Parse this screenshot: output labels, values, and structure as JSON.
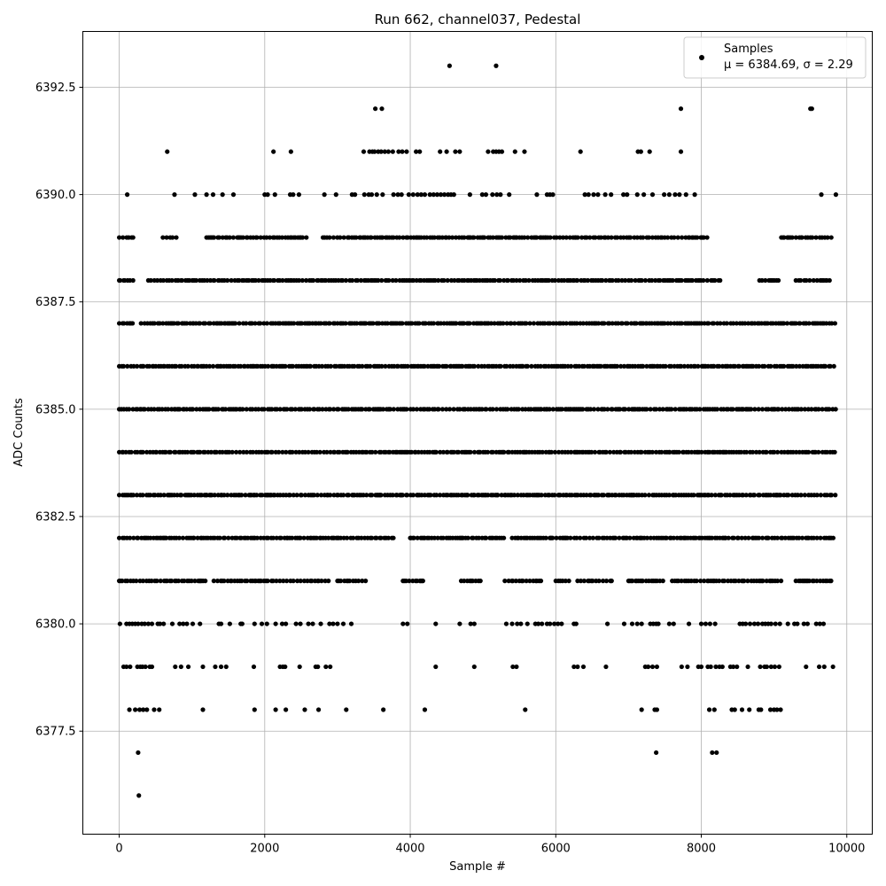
{
  "chart_data": {
    "type": "scatter",
    "title": "Run 662, channel037, Pedestal",
    "xlabel": "Sample #",
    "ylabel": "ADC Counts",
    "xlim": [
      -500,
      10350
    ],
    "ylim": [
      6375.1,
      6393.8
    ],
    "xticks": [
      0,
      2000,
      4000,
      6000,
      8000,
      10000
    ],
    "xtick_labels": [
      "0",
      "2000",
      "4000",
      "6000",
      "8000",
      "10000"
    ],
    "yticks": [
      6377.5,
      6380.0,
      6382.5,
      6385.0,
      6387.5,
      6390.0,
      6392.5
    ],
    "ytick_labels": [
      "6377.5",
      "6380.0",
      "6382.5",
      "6385.0",
      "6387.5",
      "6390.0",
      "6392.5"
    ],
    "grid": true,
    "legend": {
      "placement": "top-right",
      "entries": [
        {
          "label": "Samples",
          "marker": "dot"
        },
        {
          "label": "μ = 6384.69, σ = 2.29",
          "marker": "none"
        }
      ]
    },
    "mean": 6384.69,
    "sigma": 2.29,
    "n_samples_approx": 9850,
    "marker_color": "#000000",
    "series": [
      {
        "name": "Samples",
        "color": "#000000",
        "points_by_level": [
          {
            "y": 6376,
            "x": [
              270
            ]
          },
          {
            "y": 6377,
            "x": [
              260,
              7380,
              8150,
              8210
            ]
          },
          {
            "y": 6378,
            "x": [
              140,
              220,
              280,
              330,
              380,
              480,
              550,
              1150,
              1860,
              2150,
              2290,
              2550,
              2740,
              3120,
              3630,
              4200,
              5580,
              7180,
              7360,
              7390,
              8110,
              8180,
              8420,
              8460,
              8560,
              8660,
              8790,
              8820,
              8950,
              9000,
              9040,
              9090
            ]
          },
          {
            "y": 6379,
            "x": [
              60,
              100,
              150,
              250,
              290,
              320,
              360,
              420,
              450,
              770,
              850,
              950,
              1150,
              1320,
              1400,
              1470,
              1850,
              2210,
              2250,
              2280,
              2480,
              2700,
              2730,
              2840,
              2900,
              4350,
              4880,
              5410,
              5460,
              6250,
              6300,
              6380,
              6690,
              7230,
              7270,
              7330,
              7390,
              7730,
              7810,
              7960,
              8000,
              8090,
              8130,
              8200,
              8250,
              8290,
              8400,
              8440,
              8490,
              8640,
              8810,
              8870,
              8900,
              8960,
              9010,
              9070,
              9440,
              9620,
              9690,
              9810
            ]
          },
          {
            "y": 6380,
            "x": [
              10,
              100,
              140,
              180,
              220,
              260,
              310,
              350,
              400,
              450,
              530,
              560,
              610,
              730,
              830,
              880,
              930,
              1010,
              1110,
              1370,
              1400,
              1520,
              1670,
              1690,
              1860,
              1960,
              2030,
              2150,
              2240,
              2290,
              2430,
              2490,
              2600,
              2660,
              2770,
              2890,
              2940,
              3000,
              3080,
              3190,
              3900,
              3960,
              4350,
              4680,
              4830,
              4880,
              5320,
              5400,
              5470,
              5520,
              5610,
              5720,
              5760,
              5810,
              5880,
              5920,
              5980,
              6030,
              6080,
              6250,
              6280,
              6710,
              6940,
              7050,
              7120,
              7180,
              7300,
              7340,
              7380,
              7410,
              7560,
              7620,
              7830,
              8000,
              8060,
              8120,
              8190,
              8530,
              8570,
              8610,
              8670,
              8730,
              8780,
              8840,
              8880,
              8920,
              8960,
              9020,
              9080,
              9190,
              9280,
              9320,
              9410,
              9460,
              9580,
              9630,
              9680
            ]
          },
          {
            "y": 6381,
            "x_ranges": [
              [
                0,
                1200
              ],
              [
                1300,
                2900
              ],
              [
                3000,
                3400
              ],
              [
                3900,
                4200
              ],
              [
                4700,
                5000
              ],
              [
                5300,
                5800
              ],
              [
                6000,
                6200
              ],
              [
                6300,
                6800
              ],
              [
                7000,
                7500
              ],
              [
                7600,
                9100
              ],
              [
                9300,
                9800
              ]
            ],
            "dense": true
          },
          {
            "y": 6382,
            "x_ranges": [
              [
                0,
                3800
              ],
              [
                4000,
                5300
              ],
              [
                5400,
                9850
              ]
            ],
            "dense": true
          },
          {
            "y": 6383,
            "x_ranges": [
              [
                0,
                9850
              ]
            ],
            "dense": true
          },
          {
            "y": 6384,
            "x_ranges": [
              [
                0,
                9850
              ]
            ],
            "dense": true
          },
          {
            "y": 6385,
            "x_ranges": [
              [
                0,
                9850
              ]
            ],
            "dense": true
          },
          {
            "y": 6386,
            "x_ranges": [
              [
                0,
                9850
              ]
            ],
            "dense": true
          },
          {
            "y": 6387,
            "x_ranges": [
              [
                0,
                200
              ],
              [
                300,
                9850
              ]
            ],
            "dense": true
          },
          {
            "y": 6388,
            "x_ranges": [
              [
                0,
                200
              ],
              [
                400,
                8300
              ],
              [
                8800,
                9100
              ],
              [
                9300,
                9800
              ]
            ],
            "dense": true
          },
          {
            "y": 6389,
            "x_ranges": [
              [
                0,
                200
              ],
              [
                600,
                800
              ],
              [
                1200,
                2600
              ],
              [
                2800,
                8100
              ],
              [
                9100,
                9800
              ]
            ],
            "dense": true
          },
          {
            "y": 6390,
            "x": [
              110,
              760,
              1040,
              1200,
              1290,
              1420,
              1570,
              2000,
              2040,
              2140,
              2350,
              2390,
              2470,
              2820,
              2980,
              3200,
              3240,
              3370,
              3430,
              3470,
              3540,
              3620,
              3770,
              3830,
              3880,
              3980,
              4040,
              4100,
              4150,
              4200,
              4270,
              4320,
              4370,
              4420,
              4470,
              4520,
              4560,
              4600,
              4820,
              4990,
              5040,
              5130,
              5190,
              5240,
              5360,
              5740,
              5880,
              5920,
              5960,
              6400,
              6450,
              6520,
              6580,
              6680,
              6760,
              6930,
              6980,
              7120,
              7210,
              7330,
              7490,
              7560,
              7640,
              7700,
              7790,
              7910,
              9650,
              9850
            ]
          },
          {
            "y": 6391,
            "x": [
              660,
              2120,
              2360,
              3360,
              3440,
              3480,
              3510,
              3560,
              3600,
              3650,
              3700,
              3760,
              3840,
              3890,
              3950,
              4080,
              4130,
              4410,
              4500,
              4620,
              4680,
              5070,
              5140,
              5180,
              5220,
              5260,
              5440,
              5570,
              6340,
              7130,
              7170,
              7290,
              7720
            ]
          },
          {
            "y": 6392,
            "x": [
              3520,
              3610,
              7720,
              9500,
              9520
            ]
          },
          {
            "y": 6393,
            "x": [
              4540,
              5180
            ]
          }
        ]
      }
    ]
  }
}
